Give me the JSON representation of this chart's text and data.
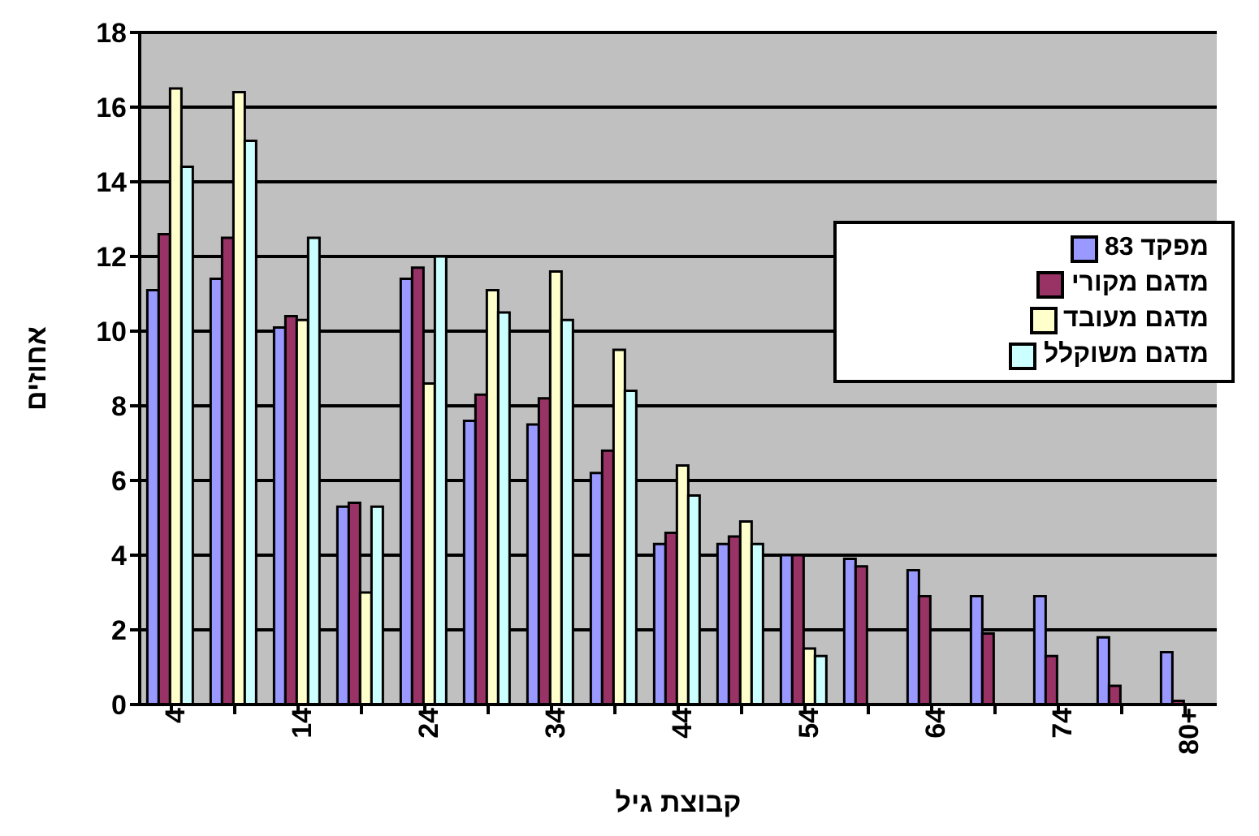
{
  "chart_data": {
    "type": "bar",
    "xlabel": "קבוצת גיל",
    "ylabel": "אחוזים",
    "categories": [
      "4",
      null,
      "14",
      null,
      "24",
      null,
      "34",
      null,
      "44",
      null,
      "54",
      null,
      "64",
      null,
      "74",
      null,
      "80+"
    ],
    "series": [
      {
        "name": "מפקד 83",
        "color": "#9999ff",
        "values": [
          11.1,
          11.4,
          10.1,
          5.3,
          11.4,
          7.6,
          7.5,
          6.2,
          4.3,
          4.3,
          4.0,
          3.9,
          3.6,
          2.9,
          2.9,
          1.8,
          1.4
        ]
      },
      {
        "name": "מדגם מקורי",
        "color": "#993366",
        "values": [
          12.6,
          12.5,
          10.4,
          5.4,
          11.7,
          8.3,
          8.2,
          6.8,
          4.6,
          4.5,
          4.0,
          3.7,
          2.9,
          1.9,
          1.3,
          0.5,
          0.1
        ]
      },
      {
        "name": "מדגם מעובד",
        "color": "#ffffcc",
        "values": [
          16.5,
          16.4,
          10.3,
          3.0,
          8.6,
          11.1,
          11.6,
          9.5,
          6.4,
          4.9,
          1.5,
          null,
          null,
          null,
          null,
          null,
          null
        ]
      },
      {
        "name": "מדגם משוקלל",
        "color": "#ccffff",
        "values": [
          14.4,
          15.1,
          12.5,
          5.3,
          12.0,
          10.5,
          10.3,
          8.4,
          5.6,
          4.3,
          1.3,
          null,
          null,
          null,
          null,
          null,
          null
        ]
      }
    ],
    "ylim": [
      0,
      18
    ],
    "yticks": [
      0,
      2,
      4,
      6,
      8,
      10,
      12,
      14,
      16,
      18
    ],
    "grid": "y",
    "legend": "right"
  }
}
